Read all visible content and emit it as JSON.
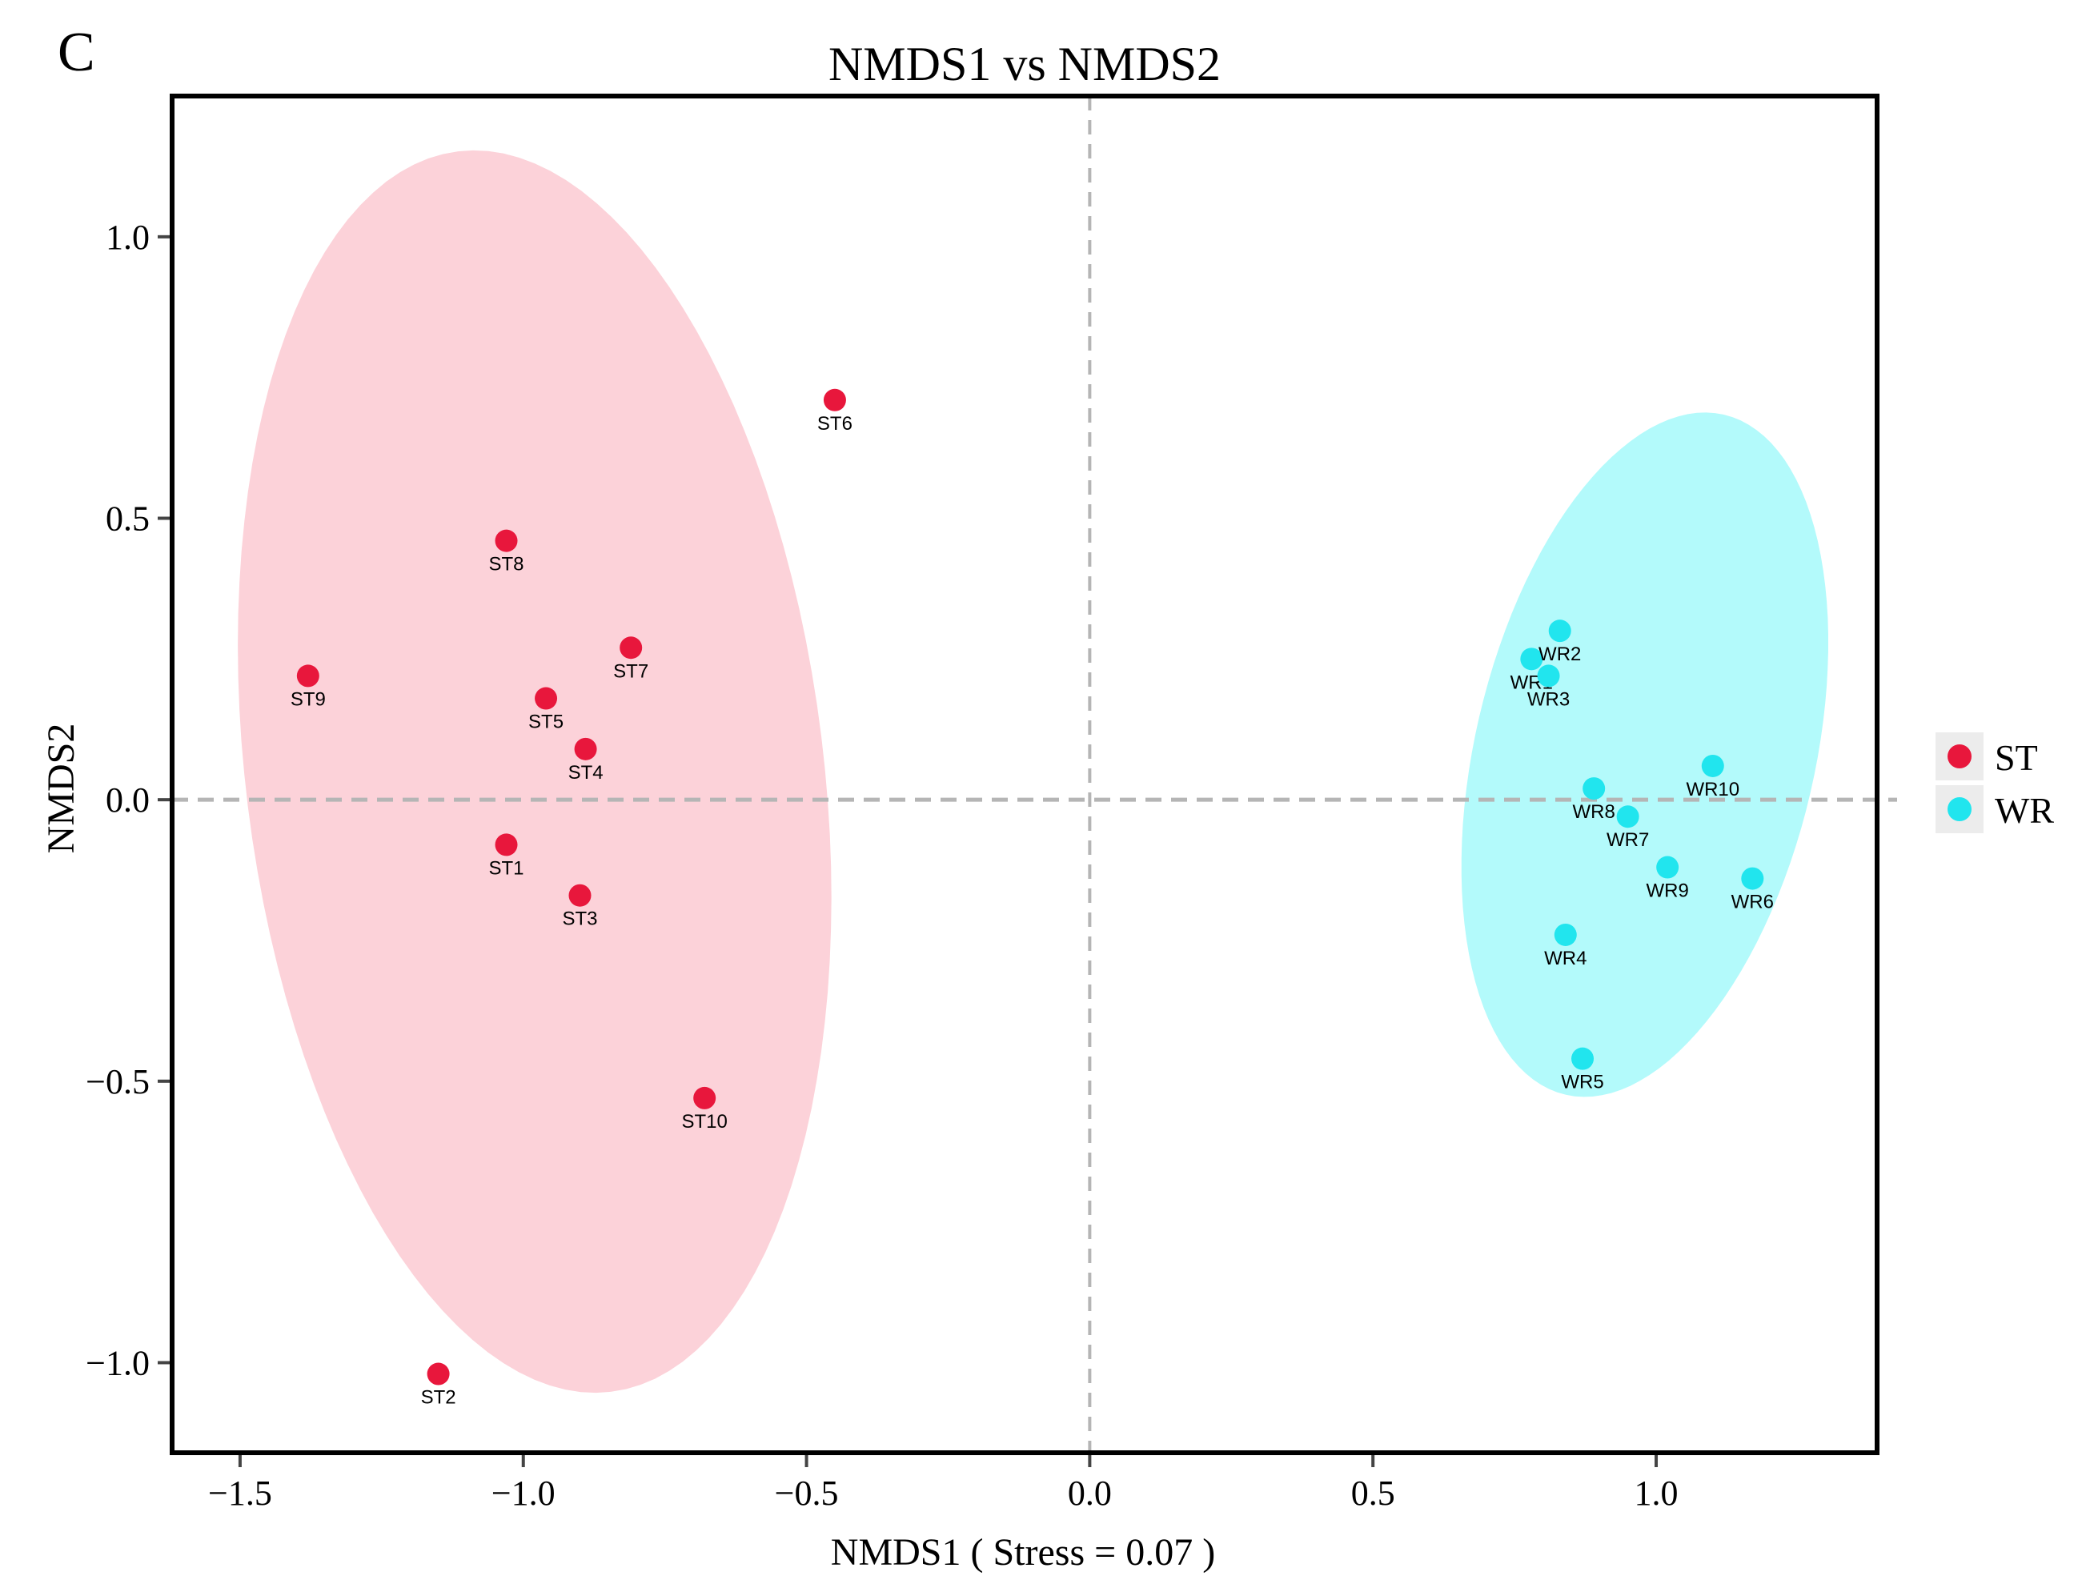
{
  "panel_label": "C",
  "chart_data": {
    "type": "scatter",
    "title": "NMDS1 vs NMDS2",
    "xlabel": "NMDS1 ( Stress = 0.07 )",
    "ylabel": "NMDS2",
    "xlim": [
      -1.62,
      1.39
    ],
    "ylim": [
      -1.16,
      1.25
    ],
    "xticks": [
      -1.5,
      -1.0,
      -0.5,
      0.0,
      0.5,
      1.0
    ],
    "xtick_labels": [
      "−1.5",
      "−1.0",
      "−0.5",
      "0.0",
      "0.5",
      "1.0"
    ],
    "yticks": [
      1.0,
      0.5,
      0.0,
      -0.5,
      -1.0
    ],
    "ytick_labels": [
      "1.0",
      "0.5",
      "0.0",
      "−0.5",
      "−1.0"
    ],
    "grid": false,
    "reference_lines": {
      "x": 0.0,
      "y": 0.0,
      "style": "dashed"
    },
    "legend_position": "right",
    "series": [
      {
        "name": "ST",
        "color": "#e8173c",
        "ellipse_color": "#fcd2d9",
        "ellipse": {
          "cx": -0.98,
          "cy": 0.05,
          "rx": 0.51,
          "ry": 1.11,
          "angle_deg": 7
        },
        "points": [
          {
            "label": "ST1",
            "x": -1.03,
            "y": -0.08
          },
          {
            "label": "ST2",
            "x": -1.15,
            "y": -1.02
          },
          {
            "label": "ST3",
            "x": -0.9,
            "y": -0.17
          },
          {
            "label": "ST4",
            "x": -0.89,
            "y": 0.09
          },
          {
            "label": "ST5",
            "x": -0.96,
            "y": 0.18
          },
          {
            "label": "ST6",
            "x": -0.45,
            "y": 0.71
          },
          {
            "label": "ST7",
            "x": -0.81,
            "y": 0.27
          },
          {
            "label": "ST8",
            "x": -1.03,
            "y": 0.46
          },
          {
            "label": "ST9",
            "x": -1.38,
            "y": 0.22
          },
          {
            "label": "ST10",
            "x": -0.68,
            "y": -0.53
          }
        ]
      },
      {
        "name": "WR",
        "color": "#21e5ee",
        "ellipse_color": "#b3fafb",
        "ellipse": {
          "cx": 0.98,
          "cy": 0.08,
          "rx": 0.3,
          "ry": 0.62,
          "angle_deg": -13
        },
        "points": [
          {
            "label": "WR1",
            "x": 0.78,
            "y": 0.25
          },
          {
            "label": "WR2",
            "x": 0.83,
            "y": 0.3
          },
          {
            "label": "WR3",
            "x": 0.81,
            "y": 0.22
          },
          {
            "label": "WR4",
            "x": 0.84,
            "y": -0.24
          },
          {
            "label": "WR5",
            "x": 0.87,
            "y": -0.46
          },
          {
            "label": "WR6",
            "x": 1.17,
            "y": -0.14
          },
          {
            "label": "WR7",
            "x": 0.95,
            "y": -0.03
          },
          {
            "label": "WR8",
            "x": 0.89,
            "y": 0.02
          },
          {
            "label": "WR9",
            "x": 1.02,
            "y": -0.12
          },
          {
            "label": "WR10",
            "x": 1.1,
            "y": 0.06
          }
        ]
      }
    ]
  }
}
